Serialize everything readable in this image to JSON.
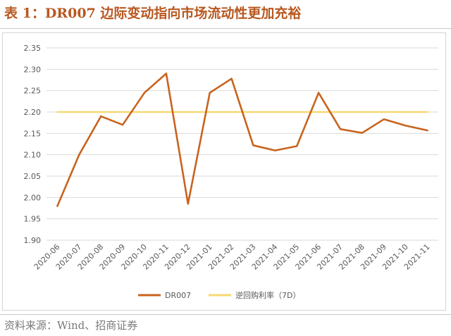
{
  "header": {
    "title": "表 1：DR007 边际变动指向市场流动性更加充裕"
  },
  "footer": {
    "source": "资料来源：Wind、招商证券"
  },
  "chart_data": {
    "type": "line",
    "title": "表 1：DR007 边际变动指向市场流动性更加充裕",
    "xlabel": "",
    "ylabel": "",
    "ylim": [
      1.9,
      2.35
    ],
    "yticks": [
      "2.35",
      "2.30",
      "2.25",
      "2.20",
      "2.15",
      "2.10",
      "2.05",
      "2.00",
      "1.95",
      "1.90"
    ],
    "categories": [
      "2020-06",
      "2020-07",
      "2020-08",
      "2020-09",
      "2020-10",
      "2020-11",
      "2020-12",
      "2021-01",
      "2021-02",
      "2021-03",
      "2021-04",
      "2021-05",
      "2021-06",
      "2021-07",
      "2021-08",
      "2021-09",
      "2021-10",
      "2021-11"
    ],
    "series": [
      {
        "name": "DR007",
        "color": "#c8641e",
        "values": [
          1.98,
          2.1,
          2.19,
          2.17,
          2.245,
          2.29,
          1.985,
          2.245,
          2.278,
          2.122,
          2.11,
          2.12,
          2.245,
          2.16,
          2.151,
          2.183,
          2.168,
          2.157
        ]
      },
      {
        "name": "逆回购利率（7D）",
        "color": "#f7d872",
        "values": [
          2.2,
          2.2,
          2.2,
          2.2,
          2.2,
          2.2,
          2.2,
          2.2,
          2.2,
          2.2,
          2.2,
          2.2,
          2.2,
          2.2,
          2.2,
          2.2,
          2.2,
          2.2
        ]
      }
    ],
    "grid": true,
    "legend_position": "bottom"
  }
}
